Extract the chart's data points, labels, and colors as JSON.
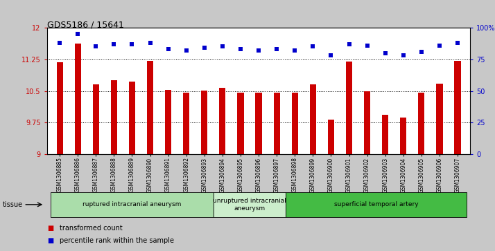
{
  "title": "GDS5186 / 15641",
  "samples": [
    "GSM1306885",
    "GSM1306886",
    "GSM1306887",
    "GSM1306888",
    "GSM1306889",
    "GSM1306890",
    "GSM1306891",
    "GSM1306892",
    "GSM1306893",
    "GSM1306894",
    "GSM1306895",
    "GSM1306896",
    "GSM1306897",
    "GSM1306898",
    "GSM1306899",
    "GSM1306900",
    "GSM1306901",
    "GSM1306902",
    "GSM1306903",
    "GSM1306904",
    "GSM1306905",
    "GSM1306906",
    "GSM1306907"
  ],
  "transformed_count": [
    11.18,
    11.62,
    10.65,
    10.75,
    10.72,
    11.22,
    10.52,
    10.46,
    10.51,
    10.58,
    10.46,
    10.46,
    10.46,
    10.46,
    10.65,
    9.82,
    11.19,
    10.5,
    9.93,
    9.87,
    10.46,
    10.68,
    11.22
  ],
  "percentile_rank": [
    88,
    95,
    85,
    87,
    87,
    88,
    83,
    82,
    84,
    85,
    83,
    82,
    83,
    82,
    85,
    78,
    87,
    86,
    80,
    78,
    81,
    86,
    88
  ],
  "bar_color": "#cc0000",
  "dot_color": "#0000cc",
  "ylim_left": [
    9,
    12
  ],
  "ylim_right": [
    0,
    100
  ],
  "yticks_left": [
    9,
    9.75,
    10.5,
    11.25,
    12
  ],
  "ytick_labels_left": [
    "9",
    "9.75",
    "10.5",
    "11.25",
    "12"
  ],
  "yticks_right": [
    0,
    25,
    50,
    75,
    100
  ],
  "ytick_labels_right": [
    "0",
    "25",
    "50",
    "75",
    "100%"
  ],
  "hlines": [
    9.75,
    10.5,
    11.25
  ],
  "groups": [
    {
      "label": "ruptured intracranial aneurysm",
      "start": 0,
      "end": 9,
      "color": "#aaddaa"
    },
    {
      "label": "unruptured intracranial\naneurysm",
      "start": 9,
      "end": 13,
      "color": "#cceecc"
    },
    {
      "label": "superficial temporal artery",
      "start": 13,
      "end": 23,
      "color": "#44bb44"
    }
  ],
  "legend_bar_label": "transformed count",
  "legend_dot_label": "percentile rank within the sample",
  "tissue_label": "tissue",
  "fig_bg_color": "#c8c8c8",
  "plot_bg_color": "#ffffff",
  "xticklabel_bg": "#d0d0d0"
}
